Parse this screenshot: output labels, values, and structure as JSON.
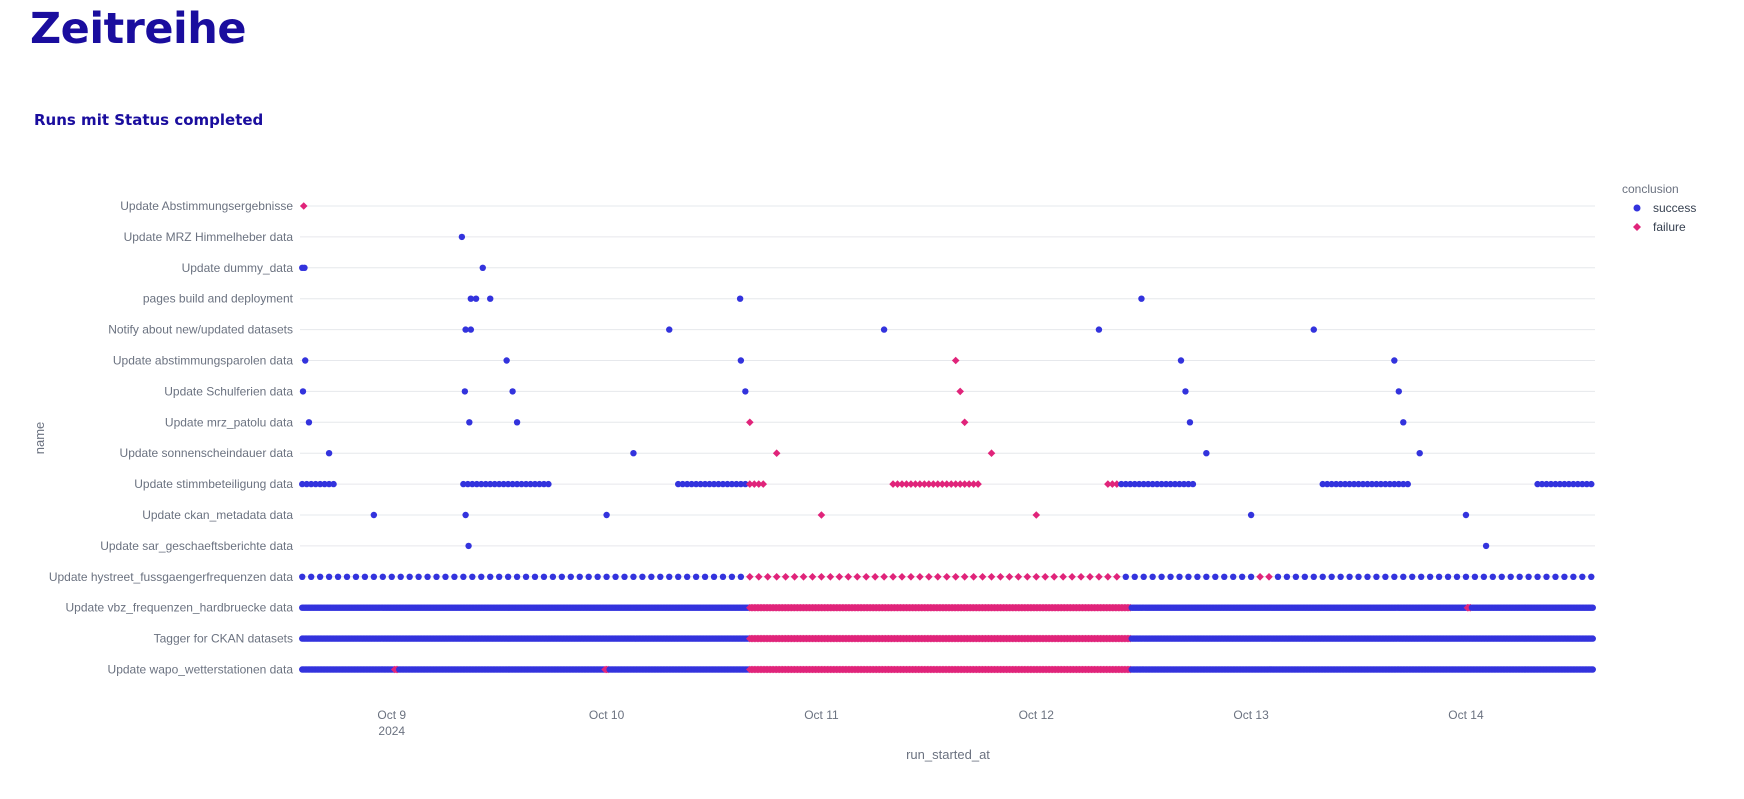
{
  "page": {
    "title": "Zeitreihe"
  },
  "chart_data": {
    "type": "scatter",
    "title": "Runs mit Status completed",
    "xlabel": "run_started_at",
    "ylabel": "name",
    "x_range": [
      "2024-10-08 13:45",
      "2024-10-14 14:25"
    ],
    "x_ticks": [
      {
        "date": "2024-10-09",
        "label": "Oct 9",
        "sublabel": "2024"
      },
      {
        "date": "2024-10-10",
        "label": "Oct 10",
        "sublabel": ""
      },
      {
        "date": "2024-10-11",
        "label": "Oct 11",
        "sublabel": ""
      },
      {
        "date": "2024-10-12",
        "label": "Oct 12",
        "sublabel": ""
      },
      {
        "date": "2024-10-13",
        "label": "Oct 13",
        "sublabel": ""
      },
      {
        "date": "2024-10-14",
        "label": "Oct 14",
        "sublabel": ""
      }
    ],
    "grid": true,
    "legend": {
      "title": "conclusion",
      "placement": "top-right",
      "items": [
        {
          "name": "success",
          "color": "#3333dd",
          "marker": "circle"
        },
        {
          "name": "failure",
          "color": "#e0247a",
          "marker": "diamond"
        }
      ]
    },
    "categories": [
      "Update Abstimmungsergebnisse",
      "Update MRZ Himmelheber data",
      "Update dummy_data",
      "pages build and deployment",
      "Notify about new/updated datasets",
      "Update abstimmungsparolen data",
      "Update Schulferien data",
      "Update mrz_patolu data",
      "Update sonnenscheindauer data",
      "Update stimmbeteiligung data",
      "Update ckan_metadata data",
      "Update sar_geschaeftsberichte data",
      "Update hystreet_fussgaengerfrequenzen data",
      "Update vbz_frequenzen_hardbruecke data",
      "Tagger for CKAN datasets",
      "Update wapo_wetterstationen data"
    ],
    "series": [
      {
        "name": "success",
        "points": [
          {
            "y": "Update MRZ Himmelheber data",
            "x": [
              "2024-10-09 07:50"
            ]
          },
          {
            "y": "Update dummy_data",
            "x": [
              "2024-10-08 14:00",
              "2024-10-08 14:15",
              "2024-10-09 10:10"
            ]
          },
          {
            "y": "pages build and deployment",
            "x": [
              "2024-10-09 08:50",
              "2024-10-09 09:25",
              "2024-10-09 11:00",
              "2024-10-10 14:55",
              "2024-10-12 11:45"
            ]
          },
          {
            "y": "Notify about new/updated datasets",
            "x": [
              "2024-10-09 08:15",
              "2024-10-09 08:50",
              "2024-10-10 07:00",
              "2024-10-11 07:00",
              "2024-10-12 07:00",
              "2024-10-13 07:00"
            ]
          },
          {
            "y": "Update abstimmungsparolen data",
            "x": [
              "2024-10-08 14:20",
              "2024-10-09 12:50",
              "2024-10-10 15:00",
              "2024-10-12 16:10",
              "2024-10-13 16:00"
            ]
          },
          {
            "y": "Update Schulferien data",
            "x": [
              "2024-10-08 14:05",
              "2024-10-09 08:10",
              "2024-10-09 13:30",
              "2024-10-10 15:30",
              "2024-10-12 16:40",
              "2024-10-13 16:30"
            ]
          },
          {
            "y": "Update mrz_patolu data",
            "x": [
              "2024-10-08 14:45",
              "2024-10-09 08:40",
              "2024-10-09 14:00",
              "2024-10-12 17:10",
              "2024-10-13 17:00"
            ]
          },
          {
            "y": "Update sonnenscheindauer data",
            "x": [
              "2024-10-08 17:00",
              "2024-10-10 03:00",
              "2024-10-12 19:00",
              "2024-10-13 18:50"
            ]
          },
          {
            "y": "Update ckan_metadata data",
            "x": [
              "2024-10-08 22:00",
              "2024-10-09 08:15",
              "2024-10-10 00:00",
              "2024-10-13 00:00",
              "2024-10-14 00:00"
            ]
          },
          {
            "y": "Update sar_geschaeftsberichte data",
            "x": [
              "2024-10-09 08:35",
              "2024-10-14 02:15"
            ]
          }
        ]
      },
      {
        "name": "failure",
        "points": [
          {
            "y": "Update Abstimmungsergebnisse",
            "x": [
              "2024-10-08 14:10"
            ]
          },
          {
            "y": "Update abstimmungsparolen data",
            "x": [
              "2024-10-11 15:00"
            ]
          },
          {
            "y": "Update Schulferien data",
            "x": [
              "2024-10-11 15:30"
            ]
          },
          {
            "y": "Update mrz_patolu data",
            "x": [
              "2024-10-10 16:00",
              "2024-10-11 16:00"
            ]
          },
          {
            "y": "Update sonnenscheindauer data",
            "x": [
              "2024-10-10 19:00",
              "2024-10-11 19:00"
            ]
          },
          {
            "y": "Update ckan_metadata data",
            "x": [
              "2024-10-11 00:00",
              "2024-10-12 00:00"
            ]
          }
        ]
      }
    ],
    "recurring": [
      {
        "y": "Update stimmbeteiligung data",
        "start": "2024-10-08 14:00",
        "end": "2024-10-14 14:00",
        "every_minutes": 30,
        "hours": [
          8,
          9,
          10,
          11,
          12,
          13,
          14,
          15,
          16,
          17
        ],
        "failure_ranges": [
          [
            "2024-10-10 16:00",
            "2024-10-12 09:00"
          ]
        ]
      },
      {
        "y": "Update hystreet_fussgaengerfrequenzen data",
        "start": "2024-10-08 14:00",
        "end": "2024-10-14 14:10",
        "every_minutes": 60,
        "failure_ranges": [
          [
            "2024-10-10 16:00",
            "2024-10-12 09:00"
          ],
          [
            "2024-10-13 01:00",
            "2024-10-13 02:00"
          ]
        ]
      },
      {
        "y": "Update vbz_frequenzen_hardbruecke data",
        "start": "2024-10-08 14:00",
        "end": "2024-10-14 14:15",
        "every_minutes": 10,
        "failure_ranges": [
          [
            "2024-10-10 16:00",
            "2024-10-12 10:30"
          ],
          [
            "2024-10-14 00:10",
            "2024-10-14 00:30"
          ]
        ]
      },
      {
        "y": "Tagger for CKAN datasets",
        "start": "2024-10-08 14:00",
        "end": "2024-10-14 14:15",
        "every_minutes": 10,
        "failure_ranges": [
          [
            "2024-10-10 16:00",
            "2024-10-12 10:30"
          ]
        ]
      },
      {
        "y": "Update wapo_wetterstationen data",
        "start": "2024-10-08 14:00",
        "end": "2024-10-14 14:15",
        "every_minutes": 10,
        "failure_ranges": [
          [
            "2024-10-09 00:20",
            "2024-10-09 00:40"
          ],
          [
            "2024-10-09 23:50",
            "2024-10-10 00:10"
          ],
          [
            "2024-10-10 16:00",
            "2024-10-12 10:30"
          ]
        ]
      }
    ]
  }
}
